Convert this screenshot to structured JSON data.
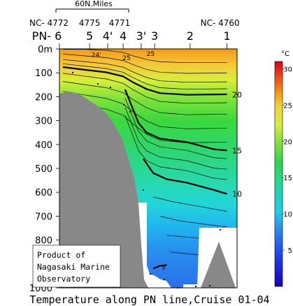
{
  "chart_data": {
    "type": "heatmap",
    "title": "Temperature along PN line,Cruise 01-04",
    "scale_bar_label": "60N.Miles",
    "station_codes": [
      {
        "label": "NC- 4772",
        "at_station": "6"
      },
      {
        "label": "4775",
        "at_station": "5"
      },
      {
        "label": "4771",
        "at_station": "4"
      },
      {
        "label": "NC- 4760",
        "at_station": "1"
      }
    ],
    "stations": [
      "PN- 6",
      "5",
      "4'",
      "4",
      "3'",
      "3",
      "2",
      "1"
    ],
    "station_x_km": [
      0,
      45,
      72,
      95,
      122,
      142,
      195,
      250
    ],
    "depth_axis": {
      "min": 0,
      "max": 1000,
      "ticks": [
        "0m",
        "100",
        "200",
        "300",
        "400",
        "500",
        "600",
        "700",
        "800",
        "900",
        "1000"
      ],
      "values": [
        0,
        100,
        200,
        300,
        400,
        500,
        600,
        700,
        800,
        900,
        1000
      ]
    },
    "colorbar": {
      "unit": "°C",
      "min": 0,
      "max": 31,
      "ticks": [
        5,
        10,
        15,
        20,
        25,
        30
      ]
    },
    "isotherm_labels": [
      {
        "text": "20",
        "x_km": 265,
        "depth": 192
      },
      {
        "text": "15",
        "x_km": 265,
        "depth": 425
      },
      {
        "text": "10",
        "x_km": 265,
        "depth": 607
      },
      {
        "text": "5",
        "x_km": 155,
        "depth": 912
      },
      {
        "text": "25",
        "x_km": 100,
        "depth": 35
      },
      {
        "text": "24'",
        "x_km": 55,
        "depth": 22
      },
      {
        "text": "25",
        "x_km": 136,
        "depth": 18
      }
    ],
    "bold_isotherms": [
      {
        "value": 20,
        "points": [
          [
            5,
            76
          ],
          [
            40,
            88
          ],
          [
            70,
            98
          ],
          [
            95,
            115
          ],
          [
            110,
            140
          ],
          [
            130,
            168
          ],
          [
            150,
            185
          ],
          [
            190,
            192
          ],
          [
            250,
            190
          ]
        ]
      },
      {
        "value": 15,
        "points": [
          [
            98,
            170
          ],
          [
            108,
            240
          ],
          [
            118,
            310
          ],
          [
            130,
            350
          ],
          [
            150,
            375
          ],
          [
            190,
            390
          ],
          [
            230,
            420
          ],
          [
            250,
            425
          ]
        ]
      },
      {
        "value": 10,
        "points": [
          [
            125,
            460
          ],
          [
            140,
            520
          ],
          [
            160,
            545
          ],
          [
            190,
            560
          ],
          [
            230,
            590
          ],
          [
            250,
            607
          ]
        ]
      },
      {
        "value": 5,
        "points": [
          [
            140,
            920
          ],
          [
            150,
            908
          ],
          [
            160,
            905
          ]
        ]
      }
    ]
  },
  "annotation": {
    "line1": "Product of",
    "line2": "Nagasaki Marine",
    "line3": "Observatory"
  }
}
